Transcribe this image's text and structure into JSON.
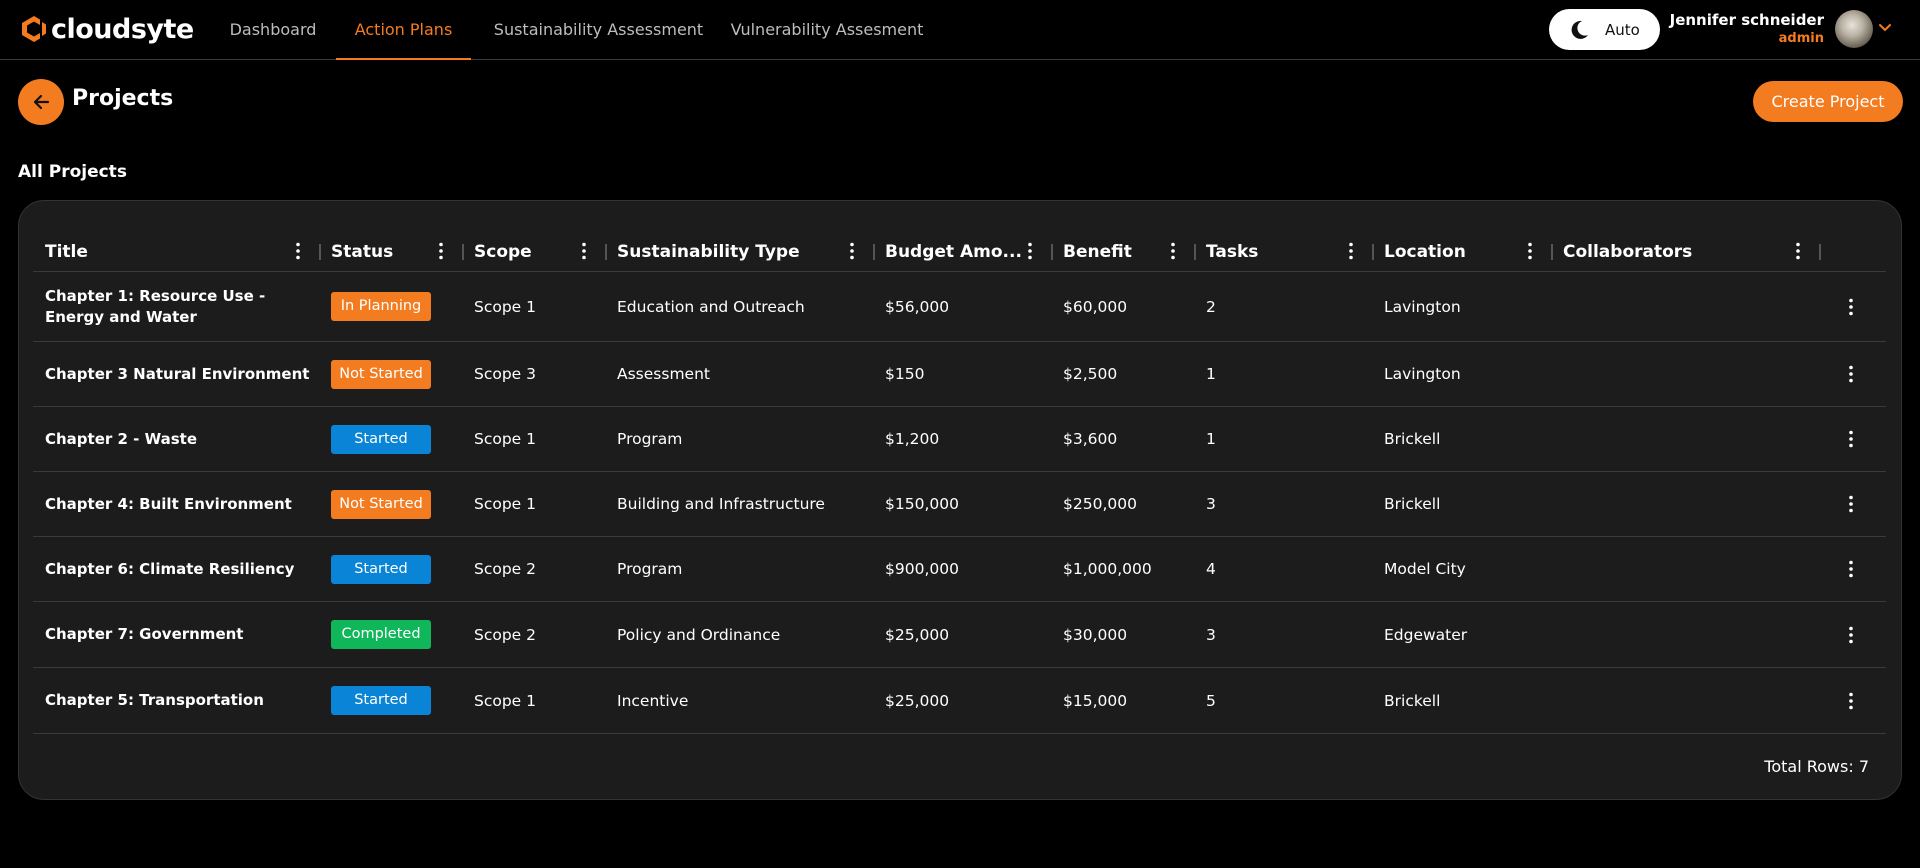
{
  "app": {
    "brand": "cloudsyte"
  },
  "nav": {
    "tabs": [
      {
        "label": "Dashboard",
        "active": false
      },
      {
        "label": "Action Plans",
        "active": true
      },
      {
        "label": "Sustainability Assessment",
        "active": false
      },
      {
        "label": "Vulnerability Assesment",
        "active": false
      }
    ]
  },
  "theme": {
    "label": "Auto"
  },
  "user": {
    "name": "Jennifer schneider",
    "role": "admin"
  },
  "page": {
    "title": "Projects",
    "create_label": "Create Project",
    "section_title": "All Projects"
  },
  "table": {
    "columns": [
      "Title",
      "Status",
      "Scope",
      "Sustainability Type",
      "Budget Amo...",
      "Benefit",
      "Tasks",
      "Location",
      "Collaborators"
    ],
    "rows": [
      {
        "title": "Chapter 1: Resource Use - Energy and Water",
        "status": "In Planning",
        "scope": "Scope 1",
        "type": "Education and Outreach",
        "budget": "$56,000",
        "benefit": "$60,000",
        "tasks": "2",
        "location": "Lavington",
        "collaborators": ""
      },
      {
        "title": "Chapter 3 Natural Environment",
        "status": "Not Started",
        "scope": "Scope 3",
        "type": "Assessment",
        "budget": "$150",
        "benefit": "$2,500",
        "tasks": "1",
        "location": "Lavington",
        "collaborators": ""
      },
      {
        "title": "Chapter 2 - Waste",
        "status": "Started",
        "scope": "Scope 1",
        "type": "Program",
        "budget": "$1,200",
        "benefit": "$3,600",
        "tasks": "1",
        "location": "Brickell",
        "collaborators": ""
      },
      {
        "title": "Chapter 4: Built Environment",
        "status": "Not Started",
        "scope": "Scope 1",
        "type": "Building and Infrastructure",
        "budget": "$150,000",
        "benefit": "$250,000",
        "tasks": "3",
        "location": "Brickell",
        "collaborators": ""
      },
      {
        "title": "Chapter 6: Climate Resiliency",
        "status": "Started",
        "scope": "Scope 2",
        "type": "Program",
        "budget": "$900,000",
        "benefit": "$1,000,000",
        "tasks": "4",
        "location": "Model City",
        "collaborators": ""
      },
      {
        "title": "Chapter 7: Government",
        "status": "Completed",
        "scope": "Scope 2",
        "type": "Policy and Ordinance",
        "budget": "$25,000",
        "benefit": "$30,000",
        "tasks": "3",
        "location": "Edgewater",
        "collaborators": ""
      },
      {
        "title": "Chapter 5: Transportation",
        "status": "Started",
        "scope": "Scope 1",
        "type": "Incentive",
        "budget": "$25,000",
        "benefit": "$15,000",
        "tasks": "5",
        "location": "Brickell",
        "collaborators": ""
      }
    ],
    "total_label": "Total Rows: 7"
  },
  "status_colors": {
    "In Planning": "#f47c20",
    "Not Started": "#f47c20",
    "Started": "#0a84d6",
    "Completed": "#10b75a"
  },
  "accent": "#f47c20"
}
